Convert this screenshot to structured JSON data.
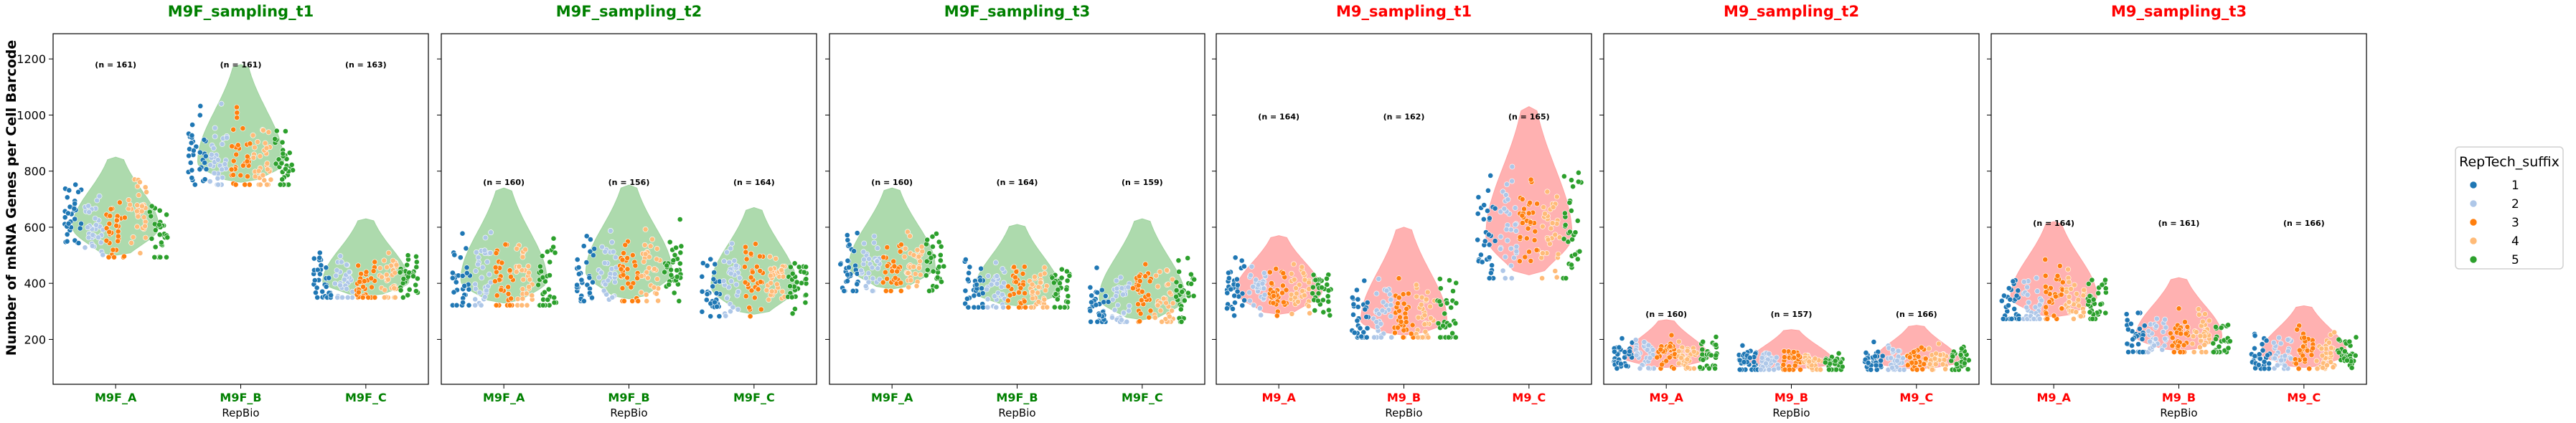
{
  "figure": {
    "ylabel": "Number of mRNA Genes per Cell Barcode",
    "xlabel": "RepBio",
    "y_ticks": [
      200,
      400,
      600,
      800,
      1000,
      1200
    ],
    "ylim": [
      40,
      1290
    ],
    "legend": {
      "title": "RepTech_suffix",
      "placement": "right",
      "entries": [
        "1",
        "2",
        "3",
        "4",
        "5"
      ]
    },
    "colors": {
      "rep1": "#1f77b4",
      "rep2": "#aec7e8",
      "rep3": "#ff7f0e",
      "rep4": "#ffbb78",
      "rep5": "#2ca02c",
      "m9f_violin": "#9fd39f",
      "m9f_text": "#008000",
      "m9_violin": "#ffa3a3",
      "m9_text": "#ff0000"
    }
  },
  "chart_data": [
    {
      "type": "violin+strip",
      "title": "M9F_sampling_t1",
      "group": "M9F",
      "categories": [
        "M9F_A",
        "M9F_B",
        "M9F_C"
      ],
      "n_labels": [
        "(n = 161)",
        "(n = 161)",
        "(n = 163)"
      ],
      "violins": [
        [
          500,
          850
        ],
        [
          760,
          1180
        ],
        [
          355,
          630
        ]
      ],
      "medians": [
        600,
        830,
        405
      ],
      "n_y": 1170,
      "reps": [
        [
          620,
          610,
          600,
          640,
          575
        ],
        [
          850,
          830,
          840,
          820,
          830
        ],
        [
          400,
          410,
          400,
          420,
          410
        ]
      ]
    },
    {
      "type": "violin+strip",
      "title": "M9F_sampling_t2",
      "group": "M9F",
      "categories": [
        "M9F_A",
        "M9F_B",
        "M9F_C"
      ],
      "n_labels": [
        "(n = 160)",
        "(n = 156)",
        "(n = 164)"
      ],
      "violins": [
        [
          330,
          740
        ],
        [
          345,
          750
        ],
        [
          290,
          670
        ]
      ],
      "medians": [
        410,
        440,
        390
      ],
      "n_y": 750,
      "reps": [
        [
          420,
          420,
          400,
          410,
          420
        ],
        [
          440,
          450,
          430,
          440,
          440
        ],
        [
          360,
          400,
          420,
          400,
          400
        ]
      ]
    },
    {
      "type": "violin+strip",
      "title": "M9F_sampling_t3",
      "group": "M9F",
      "categories": [
        "M9F_A",
        "M9F_B",
        "M9F_C"
      ],
      "n_labels": [
        "(n = 160)",
        "(n = 164)",
        "(n = 159)"
      ],
      "violins": [
        [
          380,
          740
        ],
        [
          320,
          610
        ],
        [
          270,
          630
        ]
      ],
      "medians": [
        460,
        370,
        345
      ],
      "n_y": 750,
      "reps": [
        [
          470,
          460,
          450,
          460,
          470
        ],
        [
          380,
          370,
          380,
          370,
          380
        ],
        [
          330,
          340,
          350,
          340,
          360
        ]
      ]
    },
    {
      "type": "violin+strip",
      "title": "M9_sampling_t1",
      "group": "M9",
      "categories": [
        "M9_A",
        "M9_B",
        "M9_C"
      ],
      "n_labels": [
        "(n = 164)",
        "(n = 162)",
        "(n = 165)"
      ],
      "violins": [
        [
          290,
          570
        ],
        [
          215,
          600
        ],
        [
          430,
          1030
        ]
      ],
      "medians": [
        370,
        265,
        570
      ],
      "n_y": 985,
      "reps": [
        [
          380,
          380,
          370,
          380,
          370
        ],
        [
          270,
          270,
          275,
          270,
          280
        ],
        [
          580,
          580,
          590,
          580,
          570
        ]
      ]
    },
    {
      "type": "violin+strip",
      "title": "M9_sampling_t2",
      "group": "M9",
      "categories": [
        "M9_A",
        "M9_B",
        "M9_C"
      ],
      "n_labels": [
        "(n = 160)",
        "(n = 157)",
        "(n = 166)"
      ],
      "violins": [
        [
          100,
          270
        ],
        [
          95,
          235
        ],
        [
          95,
          250
        ]
      ],
      "medians": [
        135,
        115,
        120
      ],
      "n_y": 280,
      "reps": [
        [
          140,
          140,
          150,
          140,
          140
        ],
        [
          115,
          120,
          120,
          115,
          120
        ],
        [
          120,
          125,
          130,
          125,
          125
        ]
      ]
    },
    {
      "type": "violin+strip",
      "title": "M9_sampling_t3",
      "group": "M9",
      "categories": [
        "M9_A",
        "M9_B",
        "M9_C"
      ],
      "n_labels": [
        "(n = 164)",
        "(n = 161)",
        "(n = 166)"
      ],
      "violins": [
        [
          280,
          620
        ],
        [
          160,
          420
        ],
        [
          100,
          320
        ]
      ],
      "medians": [
        350,
        210,
        150
      ],
      "n_y": 605,
      "reps": [
        [
          320,
          310,
          360,
          350,
          330
        ],
        [
          210,
          200,
          220,
          210,
          200
        ],
        [
          140,
          150,
          160,
          150,
          140
        ]
      ]
    }
  ]
}
